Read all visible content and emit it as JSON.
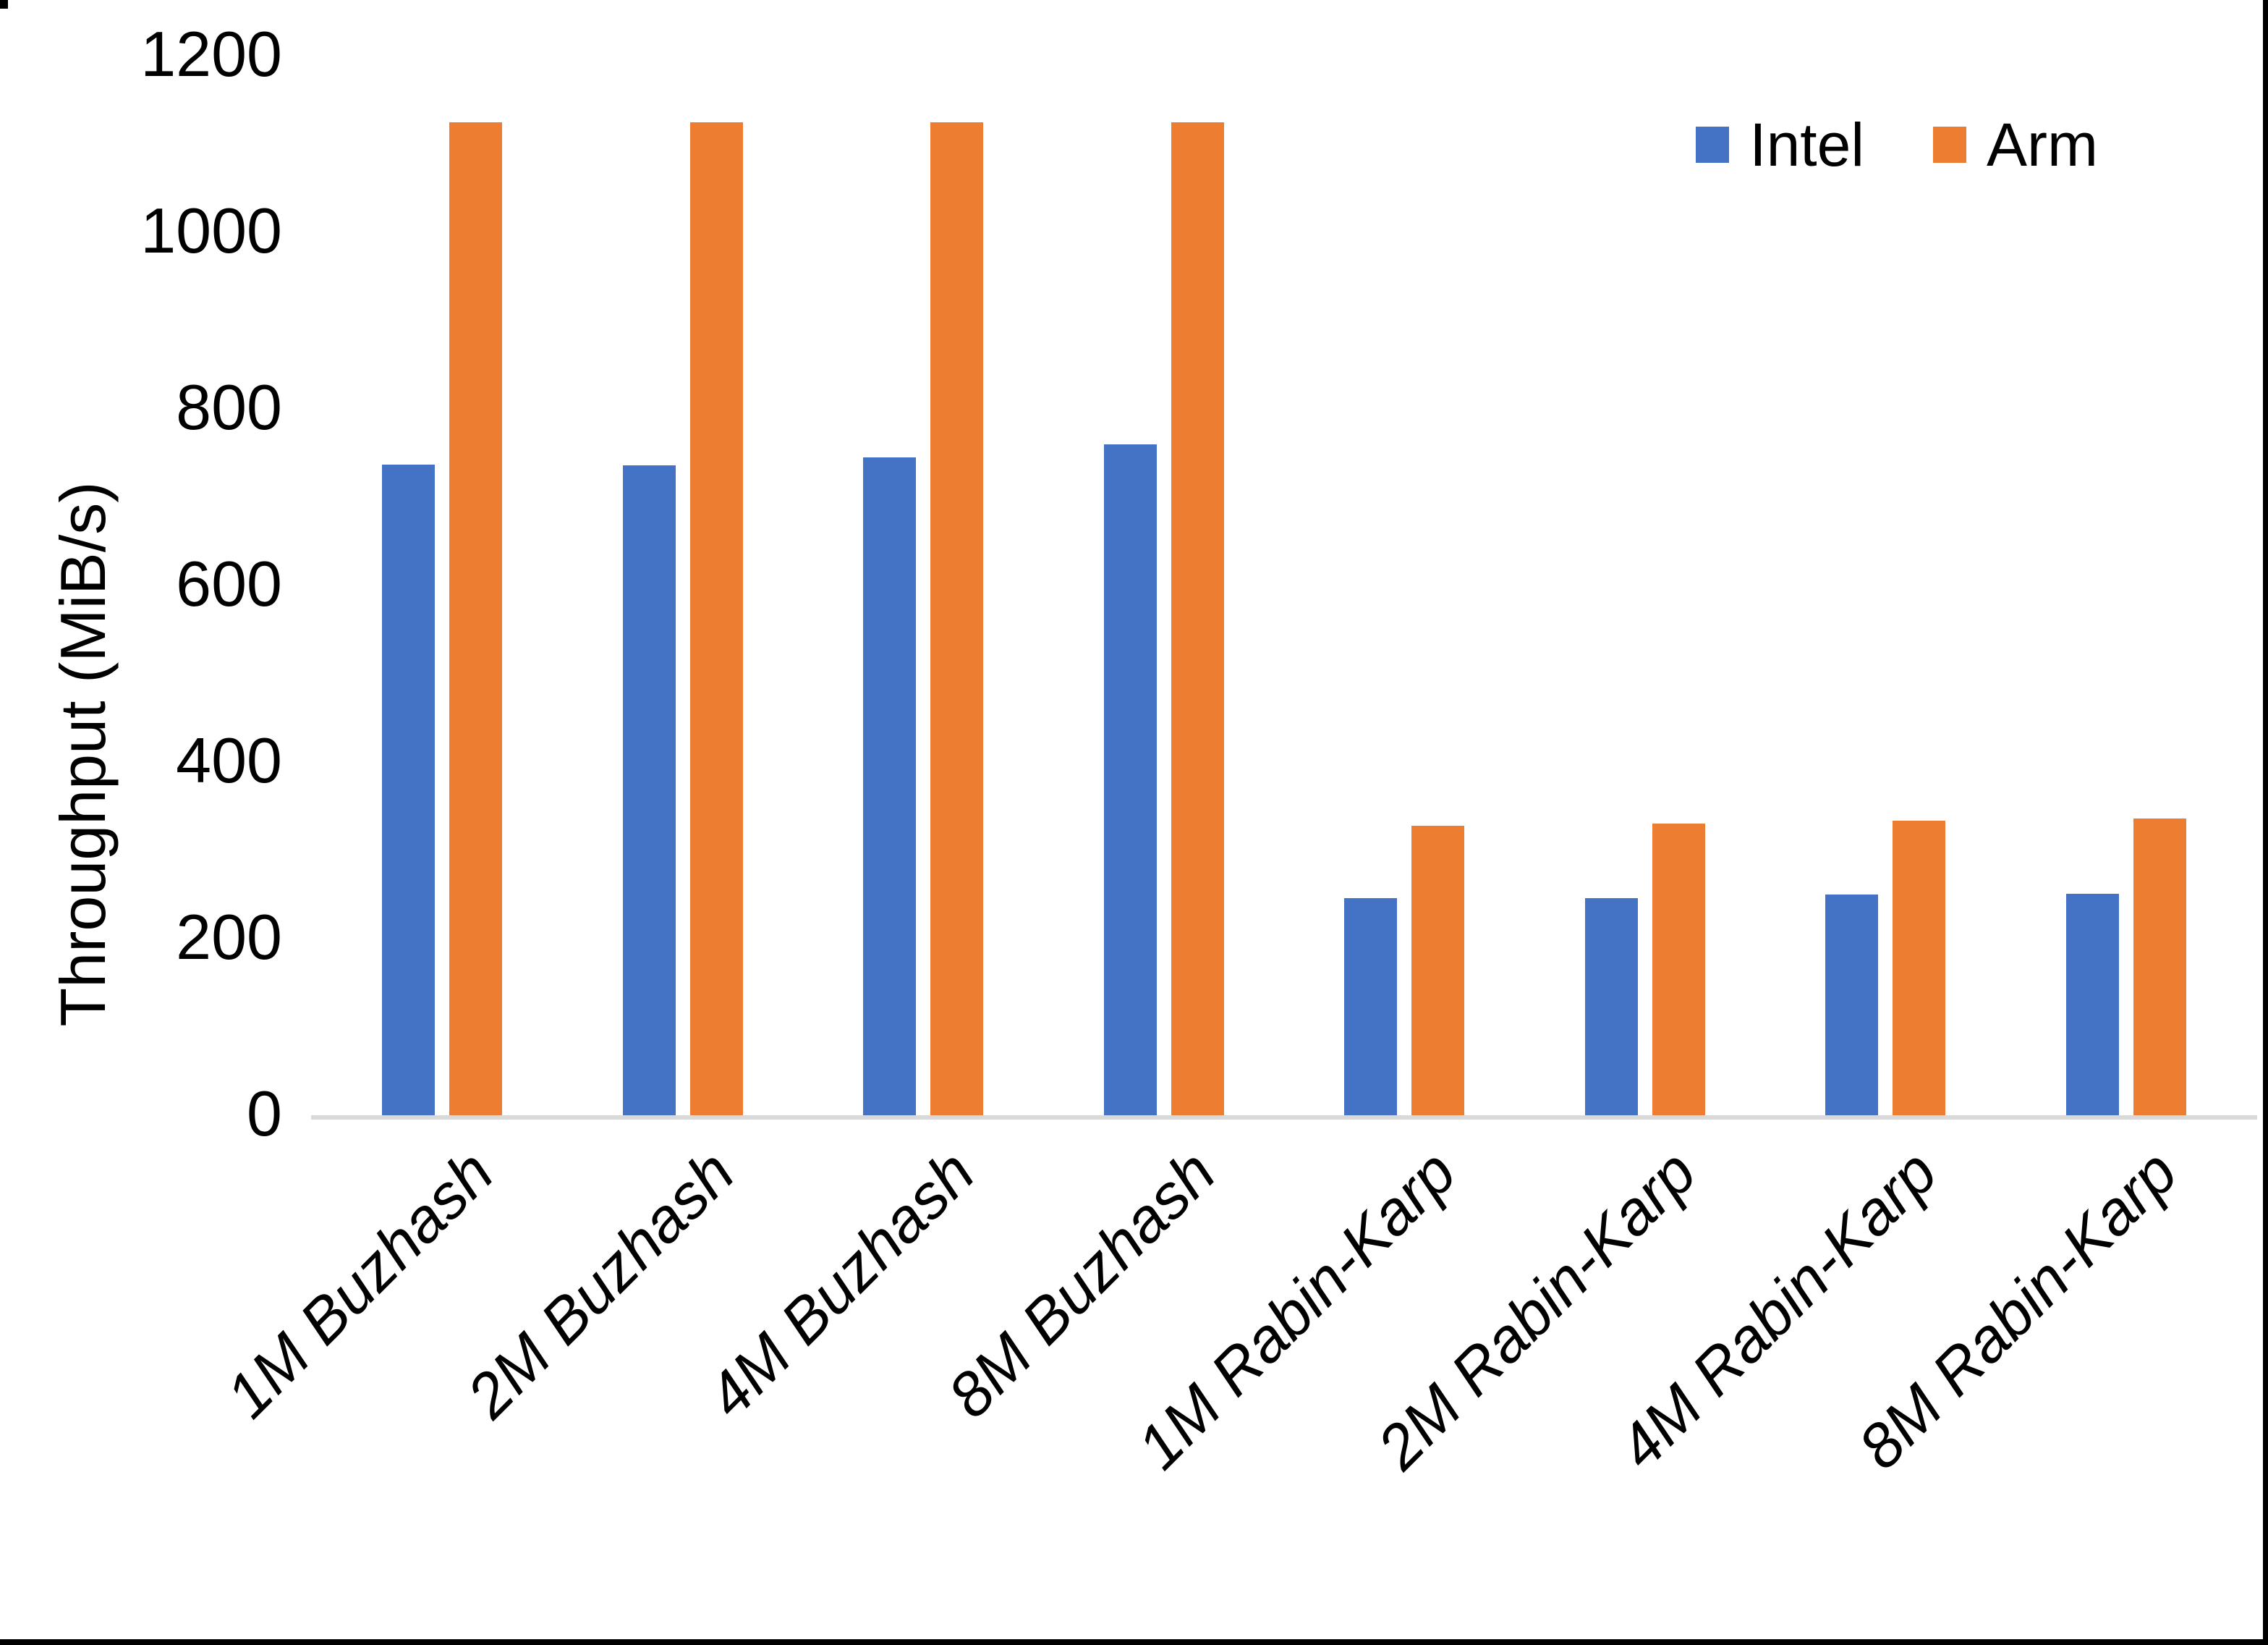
{
  "chart_data": {
    "type": "bar",
    "title": "",
    "ylabel": "Throughput (MiB/s)",
    "xlabel": "",
    "categories": [
      "1M Buzhash",
      "2M Buzhash",
      "4M Buzhash",
      "8M Buzhash",
      "1M Rabin-Karp",
      "2M Rabin-Karp",
      "4M Rabin-Karp",
      "8M Rabin-Karp"
    ],
    "series": [
      {
        "name": "Intel",
        "color": "#4472C4",
        "values": [
          737,
          736,
          745,
          760,
          246,
          246,
          250,
          251
        ]
      },
      {
        "name": "Arm",
        "color": "#ED7D31",
        "values": [
          1125,
          1125,
          1125,
          1125,
          328,
          330,
          334,
          336
        ]
      }
    ],
    "ylim": [
      0,
      1200
    ],
    "yticks": [
      0,
      200,
      400,
      600,
      800,
      1000,
      1200
    ],
    "grid": false,
    "legend_position": "top-right",
    "axis_line_color": "#D9D9D9",
    "text_color": "#000000",
    "category_label_rotation_deg": -45,
    "category_label_style": "italic"
  }
}
